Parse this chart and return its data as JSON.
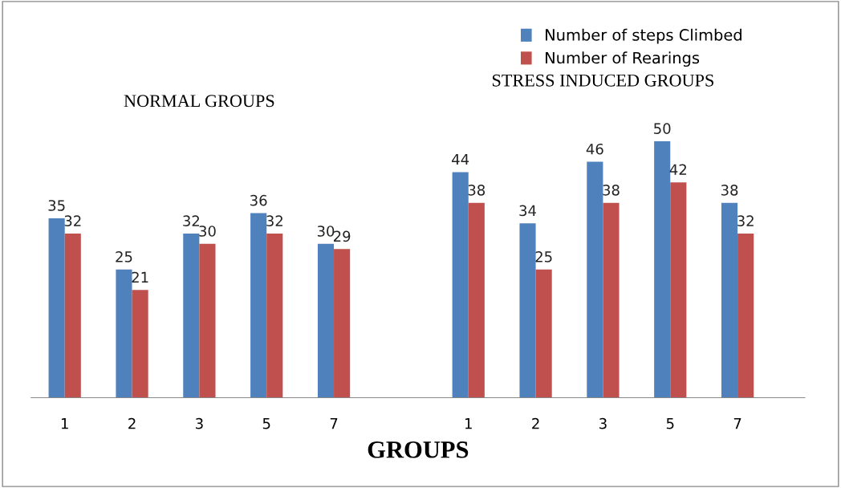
{
  "chart_data": {
    "type": "bar",
    "xlabel": "GROUPS",
    "categories": [
      "1",
      "2",
      "3",
      "5",
      "7",
      null,
      "1",
      "2",
      "3",
      "5",
      "7"
    ],
    "series": [
      {
        "name": "Number of steps Climbed",
        "color": "#4f81bd",
        "values": [
          35,
          25,
          32,
          36,
          30,
          null,
          44,
          34,
          46,
          50,
          38
        ]
      },
      {
        "name": "Number of Rearings",
        "color": "#c0504d",
        "values": [
          32,
          21,
          30,
          32,
          29,
          null,
          38,
          25,
          38,
          42,
          32
        ]
      }
    ],
    "annotations": [
      "NORMAL GROUPS",
      "STRESS INDUCED GROUPS"
    ],
    "data_labels": true,
    "legend": "top right",
    "grid": false
  }
}
